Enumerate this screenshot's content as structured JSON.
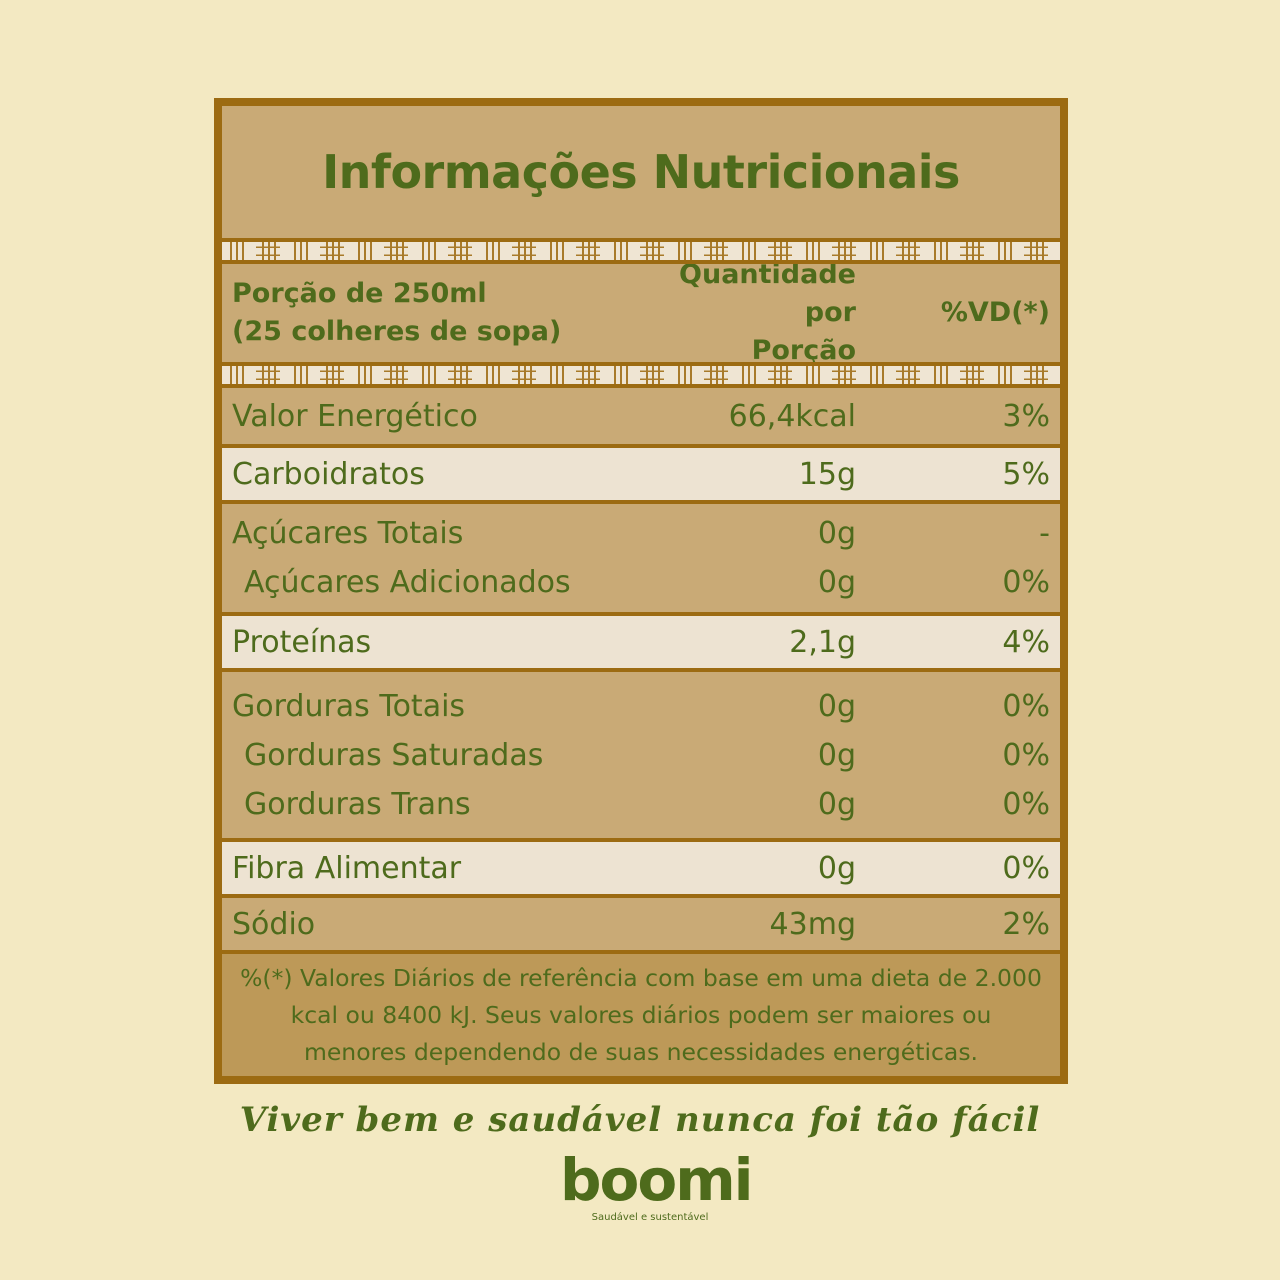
{
  "title": "Informações Nutricionais",
  "header": {
    "portion_line1": "Porção de 250ml",
    "portion_line2": "(25 colheres de sopa)",
    "quantity_line1": "Quantidade por",
    "quantity_line2": "Porção",
    "dv": "%VD(*)"
  },
  "groups": [
    {
      "shade": "dark",
      "rows": [
        {
          "name": "Valor Energético",
          "amount": "66,4kcal",
          "dv": "3%"
        }
      ]
    },
    {
      "shade": "light",
      "rows": [
        {
          "name": "Carboidratos",
          "amount": "15g",
          "dv": "5%"
        }
      ]
    },
    {
      "shade": "dark",
      "rows": [
        {
          "name": "Açúcares Totais",
          "amount": "0g",
          "dv": "-"
        },
        {
          "name": "Açúcares Adicionados",
          "amount": "0g",
          "dv": "0%"
        }
      ]
    },
    {
      "shade": "light",
      "rows": [
        {
          "name": "Proteínas",
          "amount": "2,1g",
          "dv": "4%"
        }
      ]
    },
    {
      "shade": "dark",
      "rows": [
        {
          "name": "Gorduras Totais",
          "amount": "0g",
          "dv": "0%"
        },
        {
          "name": "Gorduras Saturadas",
          "amount": "0g",
          "dv": "0%"
        },
        {
          "name": "Gorduras Trans",
          "amount": "0g",
          "dv": "0%"
        }
      ]
    },
    {
      "shade": "light",
      "rows": [
        {
          "name": "Fibra Alimentar",
          "amount": "0g",
          "dv": "0%"
        }
      ]
    },
    {
      "shade": "dark",
      "rows": [
        {
          "name": "Sódio",
          "amount": "43mg",
          "dv": "2%"
        }
      ]
    }
  ],
  "footnote": "%(*) Valores Diários de referência com base em uma dieta de 2.000 kcal ou 8400 kJ. Seus valores diários podem ser maiores ou menores dependendo de suas necessidades energéticas.",
  "slogan": "Viver bem e saudável nunca foi tão fácil",
  "brand": {
    "name": "boomi",
    "tagline": "Saudável e sustentável"
  },
  "colors": {
    "background": "#f3e9c2",
    "panel": "#c9aa76",
    "border": "#9c6b12",
    "text": "#4e6b1c",
    "light_row": "#ede3d2"
  }
}
